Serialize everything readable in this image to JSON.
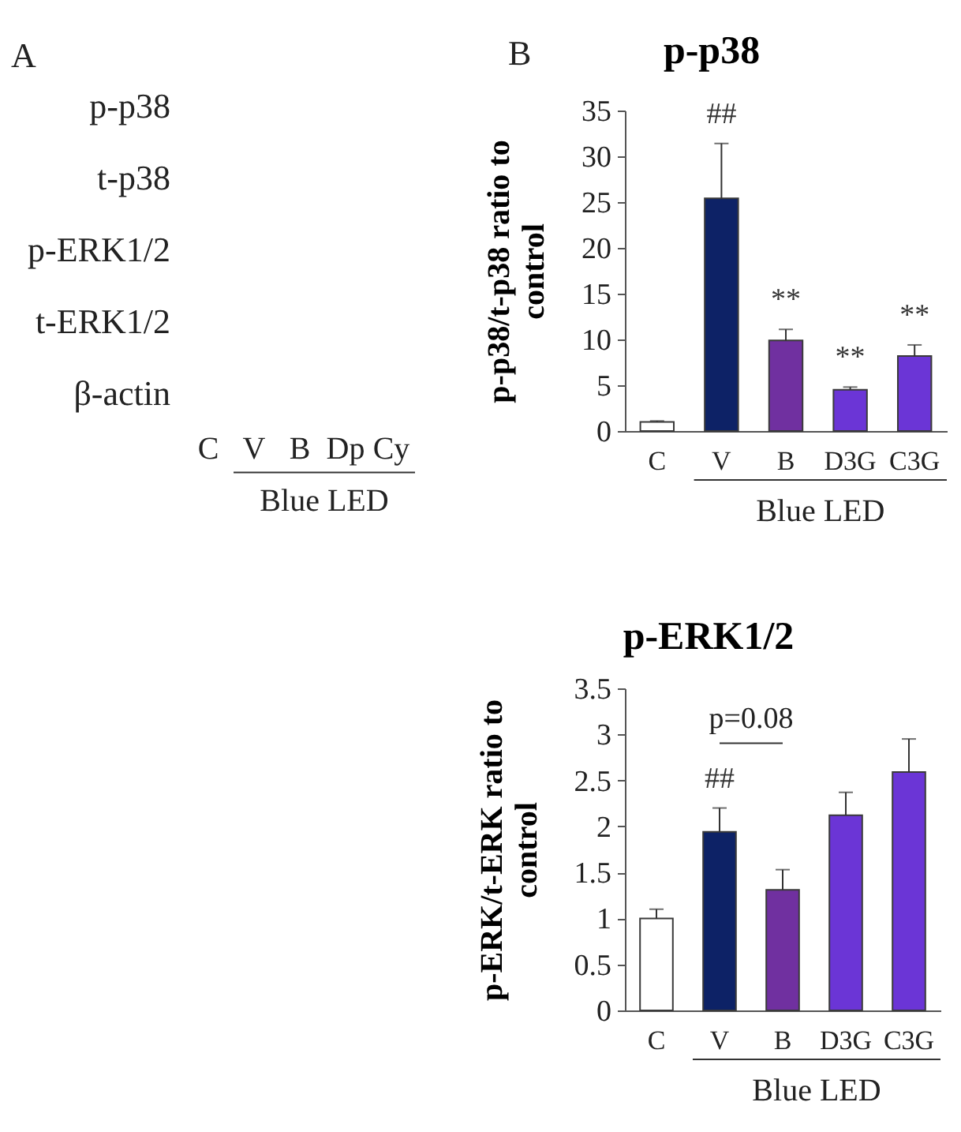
{
  "chart_data": [
    {
      "type": "other",
      "annotations": [
        "A"
      ],
      "y_categories": [
        "p-p38",
        "t-p38",
        "p-ERK1/2",
        "t-ERK1/2",
        "β-actin"
      ],
      "categories": [
        "C",
        "V",
        "B",
        "Dp",
        "Cy"
      ],
      "xlabel": "Blue LED"
    },
    {
      "type": "bar",
      "title": "p-p38",
      "ylabel": "p-p38/t-p38 ratio to control",
      "xlabel": "Blue LED",
      "categories": [
        "C",
        "V",
        "B",
        "D3G",
        "C3G"
      ],
      "values": [
        1.0,
        25.4,
        9.9,
        4.5,
        8.2
      ],
      "colors": [
        "#ffffff",
        "#0d2266",
        "#7030a0",
        "#6b35d6",
        "#6b35d6"
      ],
      "errors": [
        [
          1.0,
          1.1
        ],
        [
          25.4,
          31.4
        ],
        [
          9.9,
          11.1
        ],
        [
          4.5,
          4.8
        ],
        [
          8.2,
          9.4
        ]
      ],
      "ylim": [
        0,
        35
      ],
      "yticks": [
        0,
        5,
        10,
        15,
        20,
        25,
        30,
        35
      ],
      "grid": false,
      "annotations": [
        "B",
        {
          "text": "##",
          "x": "V",
          "y": 25.4
        },
        {
          "text": "**",
          "x": "B",
          "y": 9.9
        },
        {
          "text": "**",
          "x": "D3G",
          "y": 4.5
        },
        {
          "text": "**",
          "x": "C3G",
          "y": 8.2
        }
      ]
    },
    {
      "type": "bar",
      "title": "p-ERK1/2",
      "ylabel": "p-ERK/t-ERK ratio to control",
      "xlabel": "Blue LED",
      "categories": [
        "C",
        "V",
        "B",
        "D3G",
        "C3G"
      ],
      "values": [
        1.0,
        1.94,
        1.31,
        2.12,
        2.59
      ],
      "colors": [
        "#ffffff",
        "#0d2266",
        "#7030a0",
        "#6b35d6",
        "#6b35d6"
      ],
      "errors": [
        [
          1.0,
          1.1
        ],
        [
          1.94,
          2.2
        ],
        [
          1.31,
          1.53
        ],
        [
          2.12,
          2.37
        ],
        [
          2.59,
          2.95
        ]
      ],
      "ylim": [
        0,
        3.5
      ],
      "yticks": [
        0,
        0.5,
        1,
        1.5,
        2,
        2.5,
        3,
        3.5
      ],
      "grid": false,
      "annotations": [
        {
          "text": "##",
          "x": "V",
          "y": 1.94
        },
        "p=0.08"
      ]
    }
  ]
}
